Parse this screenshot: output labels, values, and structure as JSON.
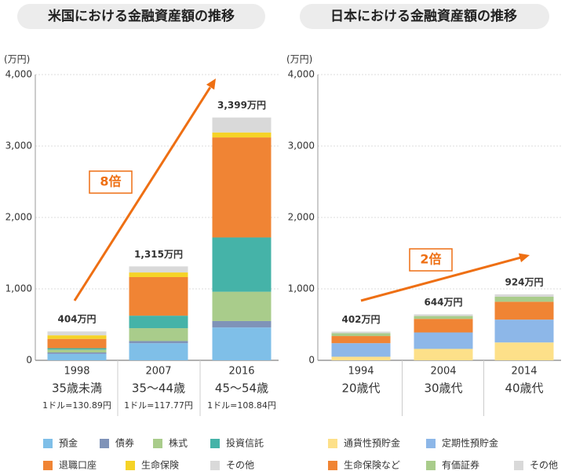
{
  "chart_data": [
    {
      "type": "stacked_bar",
      "title": "米国における金融資産額の推移",
      "y_label": "(万円)",
      "categories": [
        "1998",
        "2007",
        "2016"
      ],
      "age_labels": [
        "35歳未満",
        "35〜44歳",
        "45〜54歳"
      ],
      "rate_labels": [
        "1ドル=130.89円",
        "1ドル=117.77円",
        "1ドル=108.84円"
      ],
      "totals": [
        404,
        1315,
        3399
      ],
      "total_labels": [
        "404万円",
        "1,315万円",
        "3,399万円"
      ],
      "annotation": "8倍",
      "ylim": [
        0,
        4000
      ],
      "yticks": [
        0,
        {
          "value": 1000,
          "label": "1,000"
        },
        {
          "value": 2000,
          "label": "2,000"
        },
        {
          "value": 3000,
          "label": "3,000"
        },
        {
          "value": 4000,
          "label": "4,000"
        }
      ],
      "grid": true,
      "series": [
        {
          "name": "預金",
          "color": "#7fbfe8",
          "values": [
            90,
            240,
            460
          ]
        },
        {
          "name": "債券",
          "color": "#7f93b8",
          "values": [
            20,
            30,
            90
          ]
        },
        {
          "name": "株式",
          "color": "#a9cc8b",
          "values": [
            40,
            180,
            410
          ]
        },
        {
          "name": "投資信託",
          "color": "#45b3a8",
          "values": [
            20,
            175,
            760
          ]
        },
        {
          "name": "退職口座",
          "color": "#f08434",
          "values": [
            130,
            540,
            1400
          ]
        },
        {
          "name": "生命保険",
          "color": "#f5d327",
          "values": [
            50,
            65,
            70
          ]
        },
        {
          "name": "その他",
          "color": "#d9d9d9",
          "values": [
            54,
            85,
            209
          ]
        }
      ]
    },
    {
      "type": "stacked_bar",
      "title": "日本における金融資産額の推移",
      "y_label": "(万円)",
      "categories": [
        "1994",
        "2004",
        "2014"
      ],
      "age_labels": [
        "20歳代",
        "30歳代",
        "40歳代"
      ],
      "totals": [
        402,
        644,
        924
      ],
      "total_labels": [
        "402万円",
        "644万円",
        "924万円"
      ],
      "annotation": "2倍",
      "ylim": [
        0,
        4000
      ],
      "yticks": [
        0,
        {
          "value": 1000,
          "label": "1,000"
        },
        {
          "value": 2000,
          "label": "2,000"
        },
        {
          "value": 3000,
          "label": "3,000"
        },
        {
          "value": 4000,
          "label": "4,000"
        }
      ],
      "grid": true,
      "series": [
        {
          "name": "通貨性預貯金",
          "color": "#fde089",
          "values": [
            50,
            160,
            250
          ]
        },
        {
          "name": "定期性預貯金",
          "color": "#8db7e8",
          "values": [
            190,
            230,
            320
          ]
        },
        {
          "name": "生命保険など",
          "color": "#f08434",
          "values": [
            100,
            190,
            250
          ]
        },
        {
          "name": "有価証券",
          "color": "#a9cc8b",
          "values": [
            40,
            40,
            70
          ]
        },
        {
          "name": "その他",
          "color": "#d9d9d9",
          "values": [
            22,
            24,
            34
          ]
        }
      ]
    }
  ]
}
